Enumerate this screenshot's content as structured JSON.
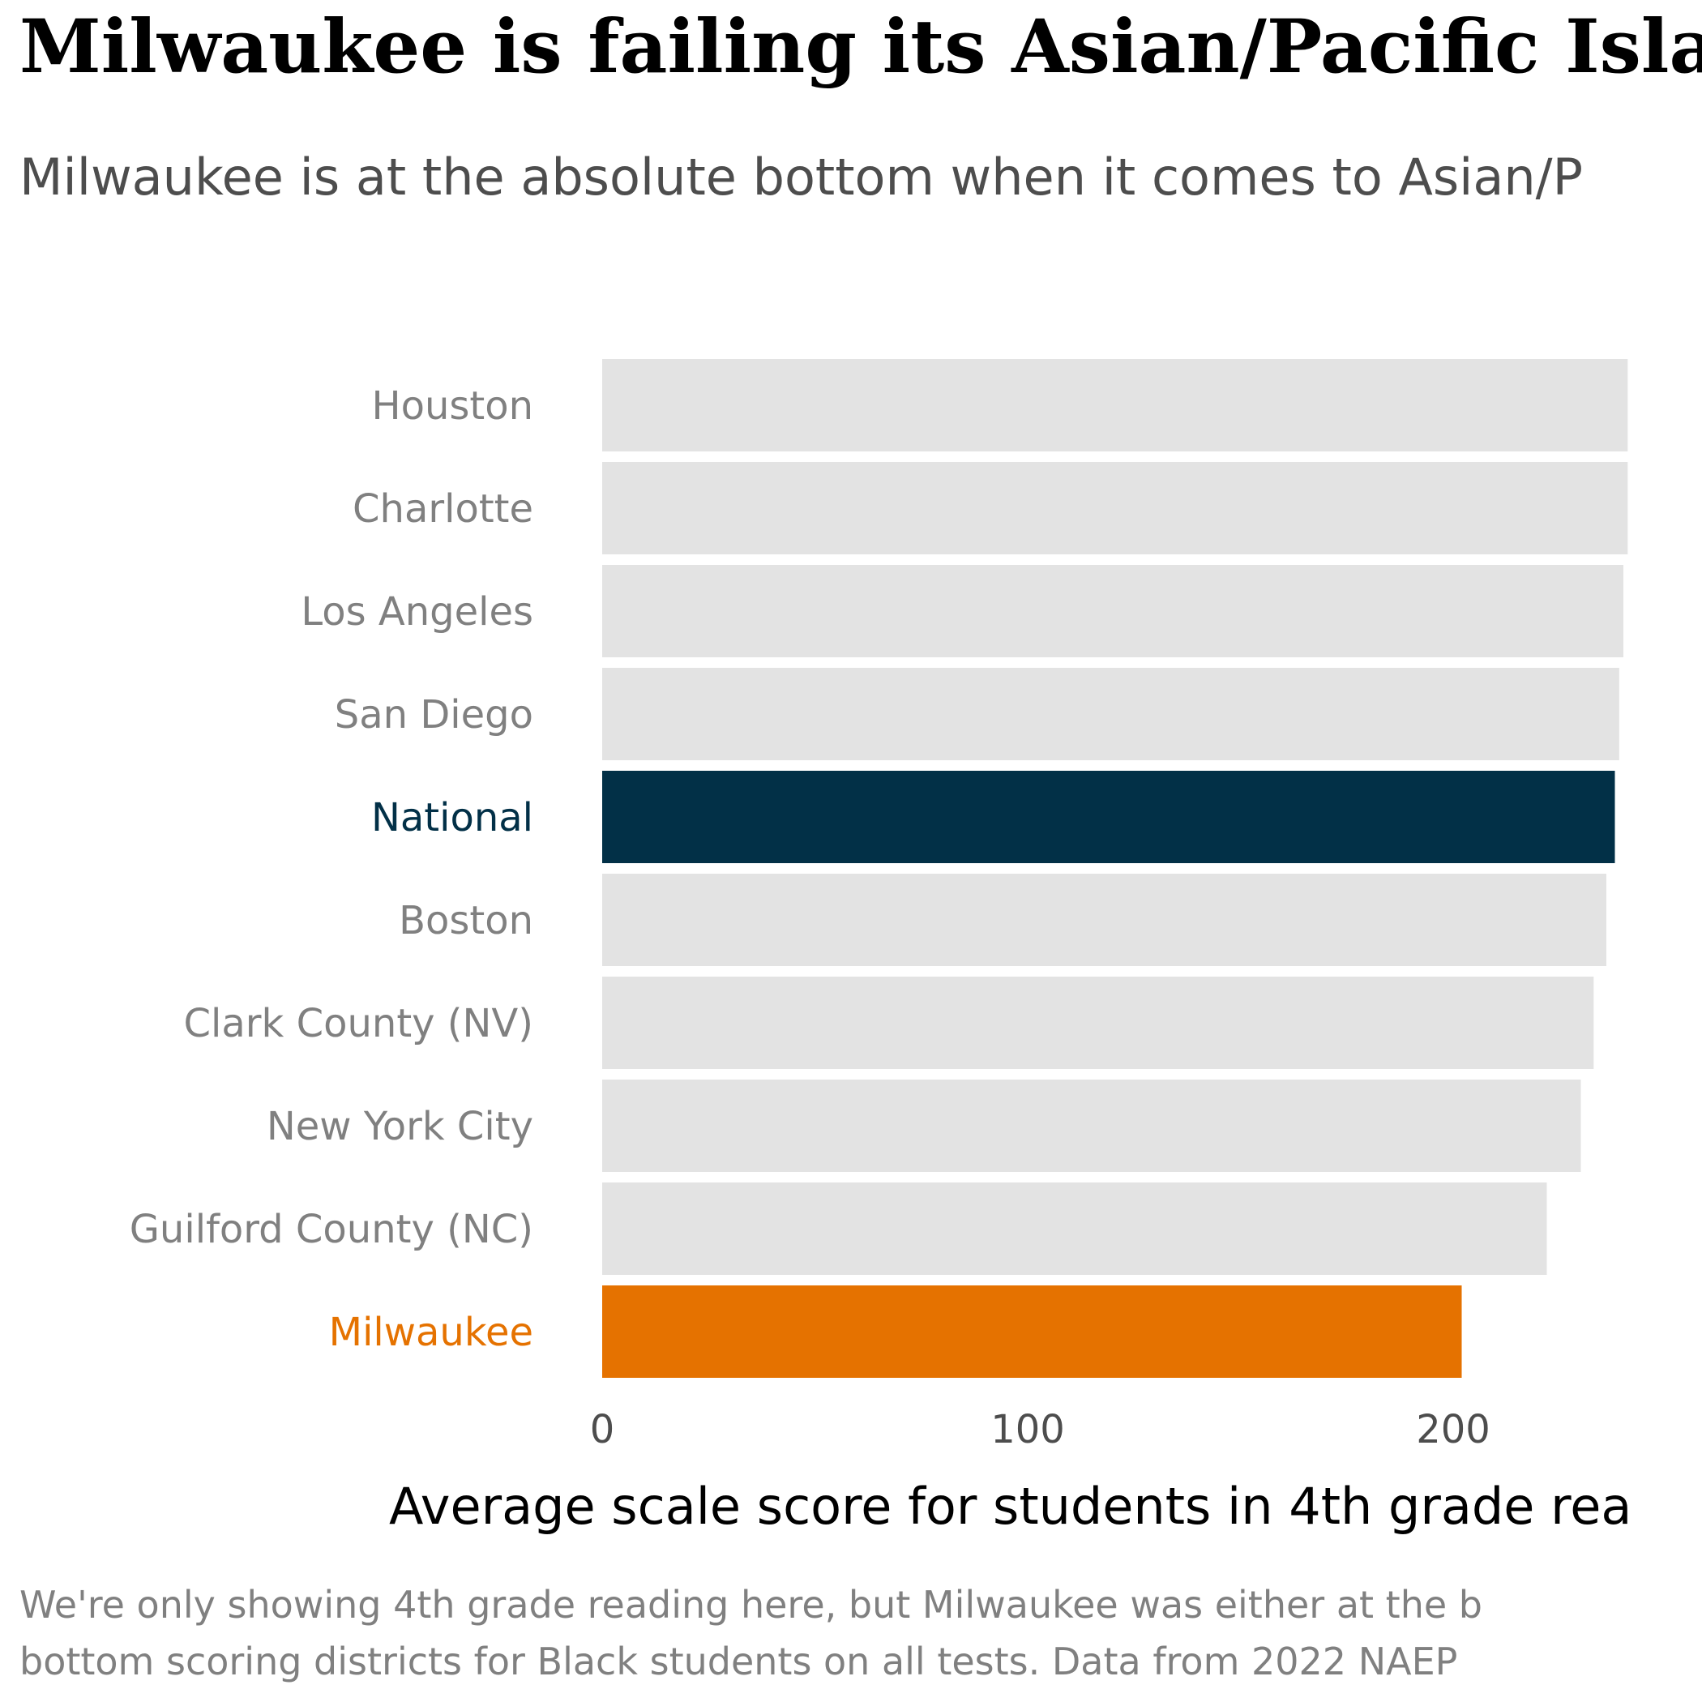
{
  "title": "Milwaukee is failing its Asian/Pacific Isla",
  "subtitle": "Milwaukee is at the absolute bottom when it comes to Asian/P",
  "caption": {
    "line1": "We're only showing 4th grade reading here, but Milwaukee was either at the b",
    "line2": "bottom scoring districts for Black students on all tests. Data from 2022 NAEP"
  },
  "colors": {
    "default_bar": "#e3e3e3",
    "national_bar": "#023047",
    "milwaukee_bar": "#e57200",
    "default_label": "#808080"
  },
  "chart_data": {
    "type": "bar",
    "orientation": "horizontal",
    "categories": [
      "Houston",
      "Charlotte",
      "Los Angeles",
      "San Diego",
      "National",
      "Boston",
      "Clark County (NV)",
      "New York City",
      "Guilford County (NC)",
      "Milwaukee"
    ],
    "values": [
      241,
      241,
      240,
      239,
      238,
      236,
      233,
      230,
      222,
      202
    ],
    "highlight": {
      "National": "#023047",
      "Milwaukee": "#e57200"
    },
    "xlabel": "Average scale score for students in 4th grade rea",
    "ylabel": "",
    "xlim": [
      0,
      241
    ],
    "xticks": [
      0,
      100,
      200
    ],
    "grid": false
  }
}
